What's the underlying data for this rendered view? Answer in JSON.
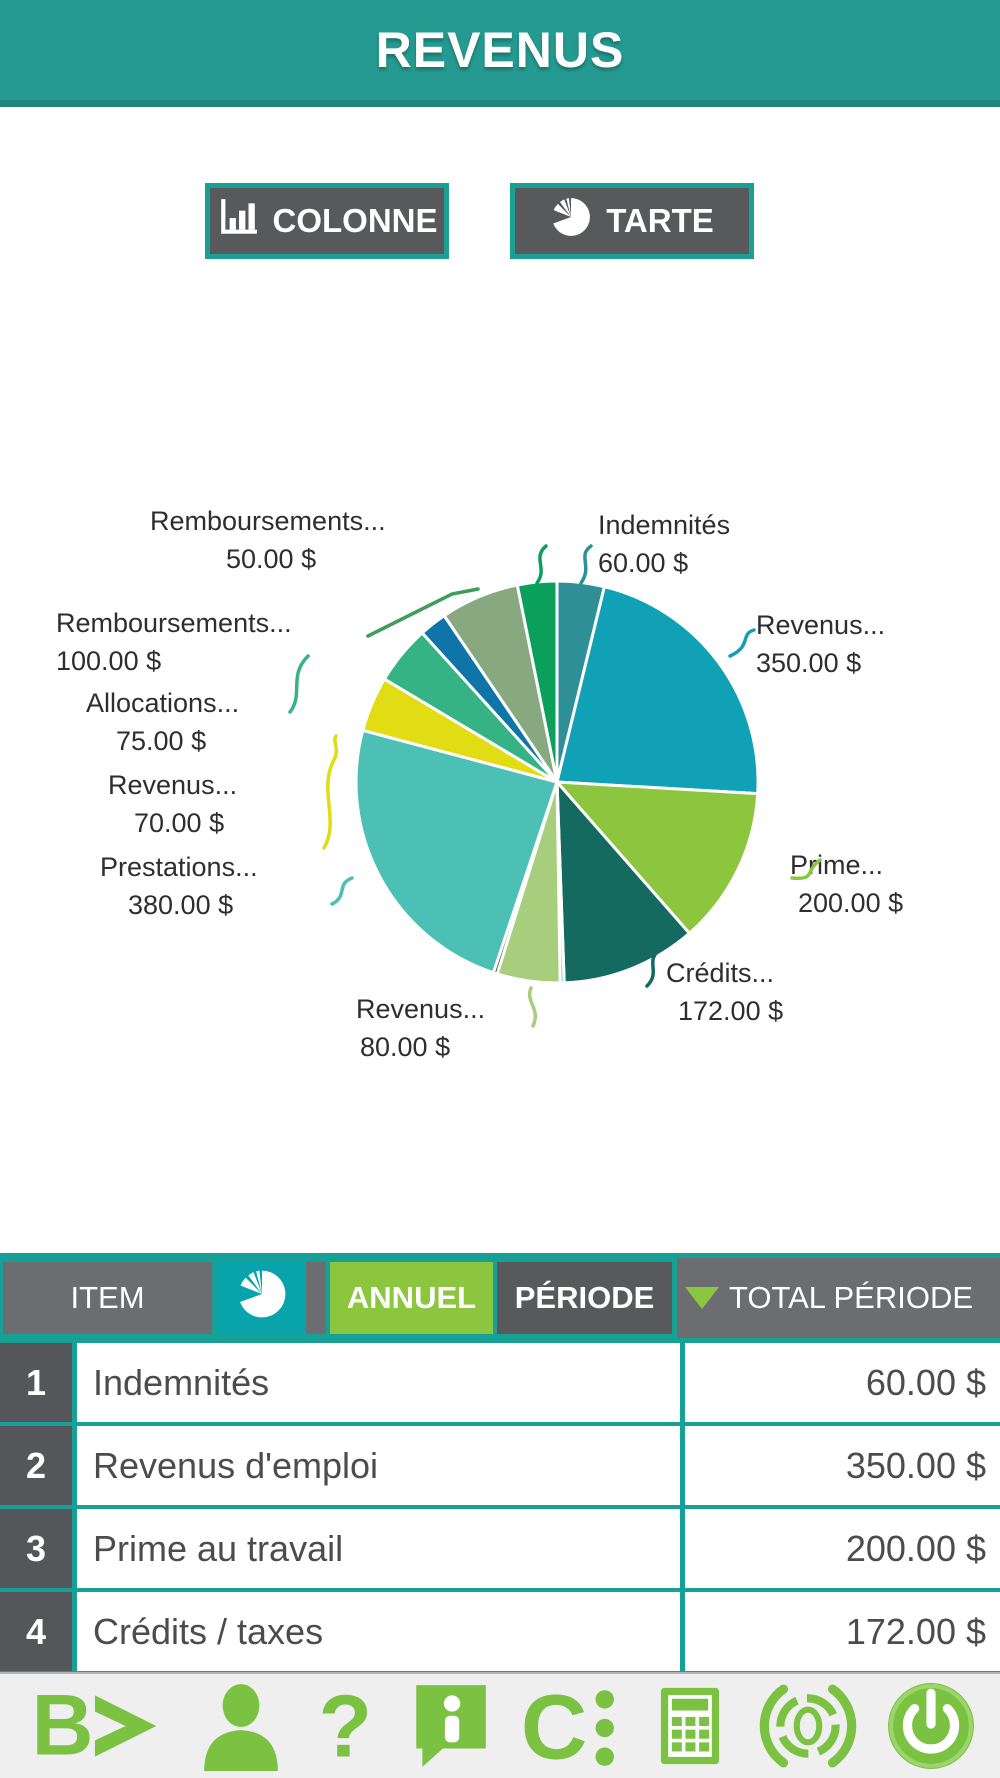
{
  "app": {
    "title": "REVENUS"
  },
  "view_toggle": {
    "colonne_label": "COLONNE",
    "tarte_label": "TARTE"
  },
  "chart_data": {
    "type": "pie",
    "title": "REVENUS",
    "currency": "$",
    "direction": "clockwise",
    "start_angle": "12-oclock",
    "legend_position": "none",
    "slices": [
      {
        "name": "Indemnités",
        "value": 60,
        "color": "#2F8F96",
        "label_visible": true,
        "display": [
          "Indemnités",
          "60.00 $"
        ]
      },
      {
        "name": "Revenus d'emploi",
        "value": 350,
        "color": "#11A1B6",
        "label_visible": true,
        "display": [
          "Revenus...",
          "350.00 $"
        ]
      },
      {
        "name": "Prime au travail",
        "value": 200,
        "color": "#8CC63E",
        "label_visible": true,
        "display": [
          "Prime...",
          "200.00 $"
        ]
      },
      {
        "name": "Crédits / taxes",
        "value": 172,
        "color": "#156A60",
        "label_visible": true,
        "display": [
          "Crédits...",
          "172.00 $"
        ]
      },
      {
        "name": "",
        "value": 5,
        "color": "#5BC4DC",
        "label_visible": false,
        "display": null
      },
      {
        "name": "Revenus",
        "value": 80,
        "color": "#A6CE7D",
        "label_visible": true,
        "display": [
          "Revenus...",
          "80.00 $"
        ]
      },
      {
        "name": "",
        "value": 5,
        "color": "#3A3F47",
        "label_visible": false,
        "display": null
      },
      {
        "name": "Prestations",
        "value": 380,
        "color": "#4CC0B4",
        "label_visible": true,
        "display": [
          "Prestations...",
          "380.00 $"
        ]
      },
      {
        "name": "Revenus",
        "value": 70,
        "color": "#E1DC13",
        "label_visible": true,
        "display": [
          "Revenus...",
          "70.00 $"
        ]
      },
      {
        "name": "Allocations",
        "value": 75,
        "color": "#35B385",
        "label_visible": true,
        "display": [
          "Allocations...",
          "75.00 $"
        ]
      },
      {
        "name": "",
        "value": 35,
        "color": "#0F74A8",
        "label_visible": false,
        "display": null
      },
      {
        "name": "Remboursements",
        "value": 100,
        "color": "#88A97F",
        "label_visible": true,
        "display": [
          "Remboursements...",
          "100.00 $"
        ],
        "callout_color": "#3E9D57"
      },
      {
        "name": "Remboursements",
        "value": 50,
        "color": "#0AA05C",
        "label_visible": true,
        "display": [
          "Remboursements...",
          "50.00 $"
        ]
      }
    ]
  },
  "table": {
    "header": {
      "item": "ITEM",
      "pie_toggle_icon": "pie-chart-icon",
      "annuel": "ANNUEL",
      "periode": "PÉRIODE",
      "total": "TOTAL PÉRIODE",
      "sort_icon": "down-triangle"
    },
    "rows": [
      {
        "num": "1",
        "item": "Indemnités",
        "amount": "60.00 $"
      },
      {
        "num": "2",
        "item": "Revenus d'emploi",
        "amount": "350.00 $"
      },
      {
        "num": "3",
        "item": "Prime au travail",
        "amount": "200.00 $"
      },
      {
        "num": "4",
        "item": "Crédits / taxes",
        "amount": "172.00 $"
      }
    ]
  },
  "toolbar": {
    "accent_color": "#7CC242",
    "icons": [
      {
        "name": "logo-b-icon",
        "glyph": "B"
      },
      {
        "name": "user-icon"
      },
      {
        "name": "help-icon",
        "glyph": "?"
      },
      {
        "name": "info-icon",
        "glyph": "i"
      },
      {
        "name": "c-colon-icon",
        "glyph": "C"
      },
      {
        "name": "calculator-icon"
      },
      {
        "name": "dial-icon",
        "glyph": "0"
      },
      {
        "name": "power-icon"
      }
    ]
  },
  "colors": {
    "header_teal": "#259A90",
    "table_teal": "#16A096",
    "pie_button_teal": "#08A3AB",
    "lime_green": "#8CC63E",
    "toolbar_green": "#7CC242",
    "dark_gray": "#58595B",
    "block_gray": "#6B6D70"
  }
}
